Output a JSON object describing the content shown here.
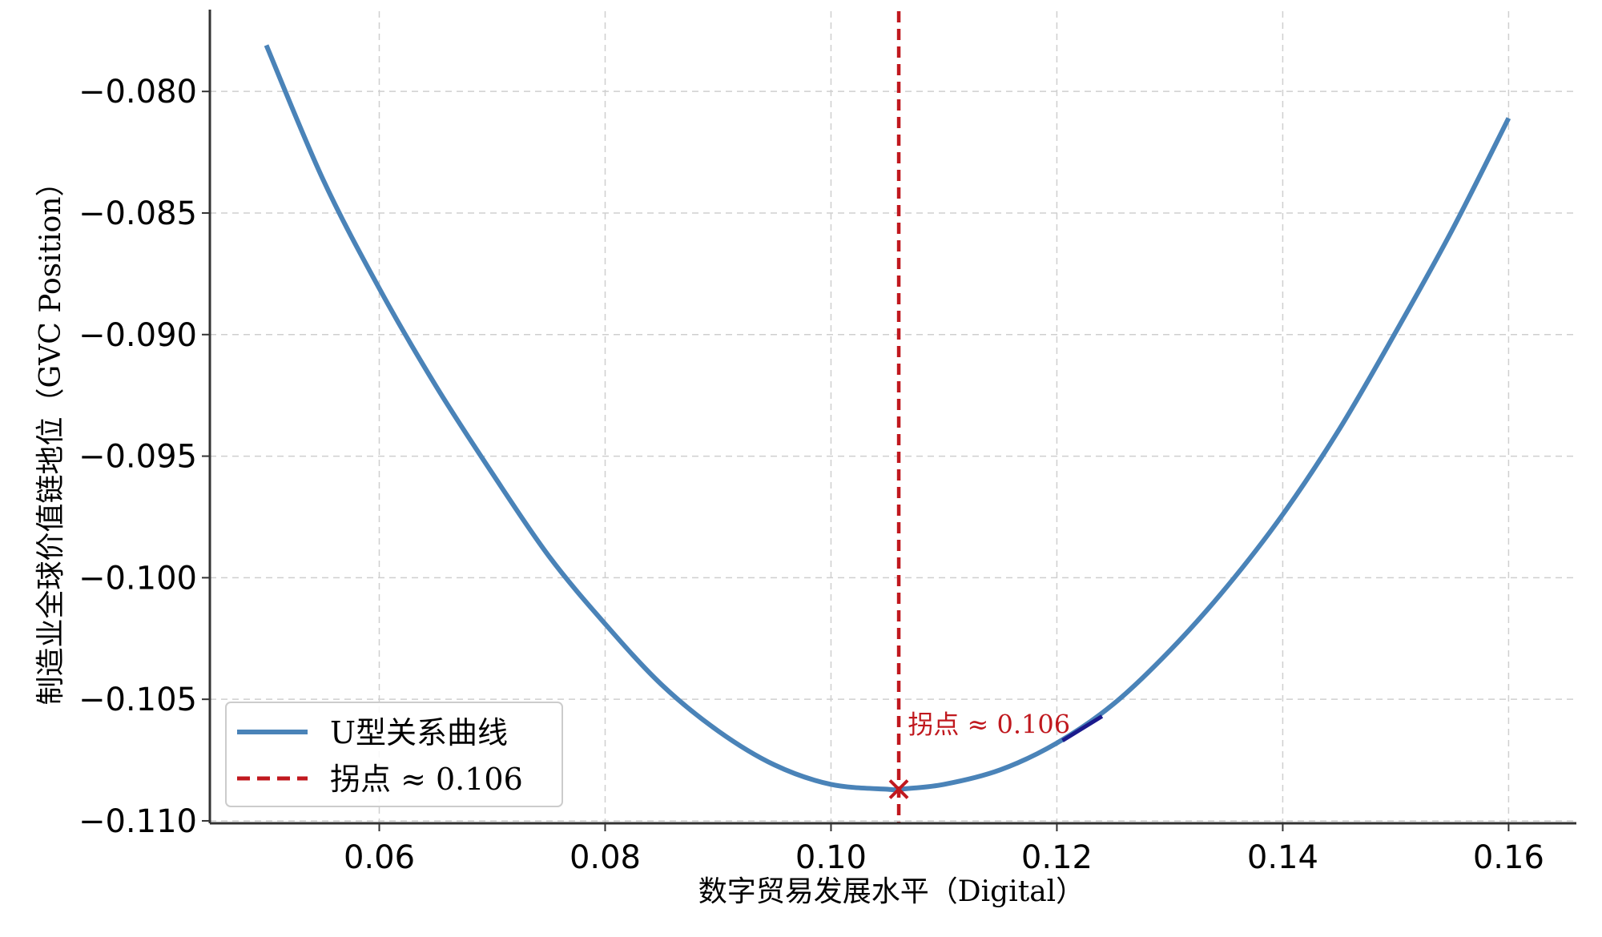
{
  "chart_data": {
    "type": "line",
    "title": "",
    "xlabel": "数字贸易发展水平（Digital）",
    "ylabel": "制造业全球价值链地位（GVC Position）",
    "xlim": [
      0.045,
      0.166
    ],
    "ylim": [
      -0.1101,
      -0.0767
    ],
    "x_ticks": [
      0.06,
      0.08,
      0.1,
      0.12,
      0.14,
      0.16
    ],
    "x_tick_labels": [
      "0.06",
      "0.08",
      "0.10",
      "0.12",
      "0.14",
      "0.16"
    ],
    "y_ticks": [
      -0.08,
      -0.085,
      -0.09,
      -0.095,
      -0.1,
      -0.105,
      -0.11
    ],
    "y_tick_labels": [
      "−0.080",
      "−0.085",
      "−0.090",
      "−0.095",
      "−0.100",
      "−0.105",
      "−0.110"
    ],
    "grid": true,
    "legend_placement": "lower-left",
    "series": [
      {
        "name": "U型关系曲线",
        "color": "#4a83b8",
        "x": [
          0.05,
          0.055,
          0.06,
          0.065,
          0.07,
          0.075,
          0.08,
          0.085,
          0.09,
          0.095,
          0.1,
          0.105,
          0.106,
          0.11,
          0.115,
          0.12,
          0.125,
          0.13,
          0.135,
          0.14,
          0.145,
          0.15,
          0.155,
          0.16
        ],
        "y": [
          -0.0781,
          -0.0836,
          -0.0881,
          -0.0921,
          -0.0957,
          -0.0991,
          -0.1019,
          -0.1044,
          -0.1063,
          -0.1077,
          -0.1085,
          -0.1087,
          -0.1087,
          -0.1085,
          -0.1079,
          -0.1068,
          -0.1052,
          -0.103,
          -0.1004,
          -0.0974,
          -0.0939,
          -0.0899,
          -0.0857,
          -0.0811
        ]
      }
    ],
    "vline": {
      "name": "拐点 ≈ 0.106",
      "x": 0.106,
      "color": "#c0181e",
      "style": "dashed"
    },
    "turning_point": {
      "x": 0.106,
      "y": -0.1087,
      "marker": "x",
      "color": "#c0181e"
    },
    "annotation": {
      "text": "拐点 ≈ 0.106",
      "x": 0.1068,
      "y": -0.1064,
      "color": "#c0181e"
    },
    "arrow": {
      "x_from": 0.1205,
      "y_from": -0.1067,
      "x_to": 0.124,
      "y_to": -0.1057,
      "color": "#1a1a8c"
    }
  }
}
